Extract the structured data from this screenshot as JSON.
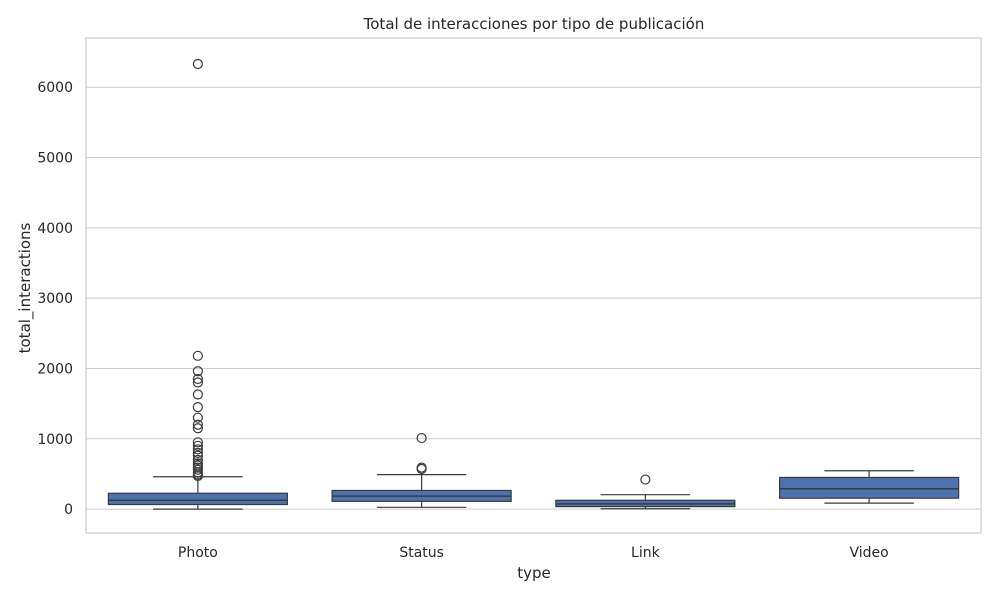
{
  "chart_data": {
    "type": "box",
    "title": "Total de interacciones por tipo de publicación",
    "xlabel": "type",
    "ylabel": "total_interactions",
    "categories": [
      "Photo",
      "Status",
      "Link",
      "Video"
    ],
    "yticks": [
      0,
      1000,
      2000,
      3000,
      4000,
      5000,
      6000
    ],
    "ylim": [
      -340,
      6700
    ],
    "grid": true,
    "box_color": "#4c72b0",
    "boxes": [
      {
        "category": "Photo",
        "whisker_low": 0,
        "q1": 65,
        "median": 125,
        "q3": 225,
        "whisker_high": 460,
        "outliers": [
          470,
          490,
          520,
          560,
          590,
          620,
          650,
          700,
          760,
          800,
          850,
          900,
          950,
          1150,
          1200,
          1300,
          1450,
          1630,
          1800,
          1850,
          1960,
          2180,
          6330
        ]
      },
      {
        "category": "Status",
        "whisker_low": 25,
        "q1": 110,
        "median": 185,
        "q3": 265,
        "whisker_high": 490,
        "outliers": [
          570,
          590,
          1010
        ]
      },
      {
        "category": "Link",
        "whisker_low": 5,
        "q1": 35,
        "median": 75,
        "q3": 125,
        "whisker_high": 205,
        "outliers": [
          420
        ]
      },
      {
        "category": "Video",
        "whisker_low": 85,
        "q1": 155,
        "median": 290,
        "q3": 450,
        "whisker_high": 545,
        "outliers": []
      }
    ]
  }
}
